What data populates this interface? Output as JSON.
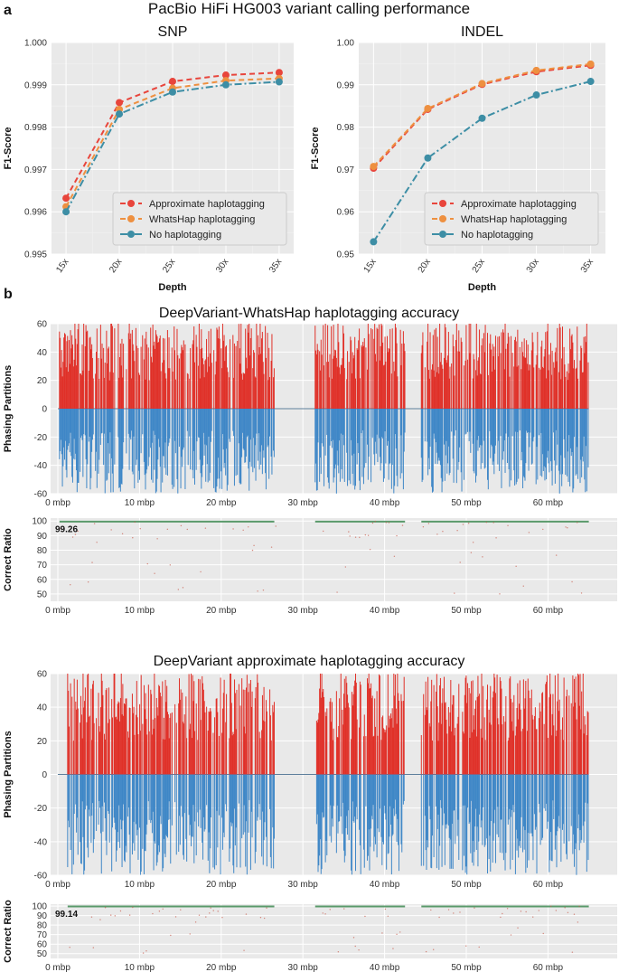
{
  "figure": {
    "label_a": "a",
    "label_b": "b",
    "title_a": "PacBio HiFi HG003 variant calling performance"
  },
  "colors": {
    "approx": "#e8453c",
    "whatshap": "#ee9040",
    "none": "#3d8ea5",
    "positive": "#e03129",
    "negative": "#3f87c7",
    "ratio_line": "#5a9a6b",
    "ratio_dot": "#c75a4a"
  },
  "chart_data": [
    {
      "id": "snp",
      "type": "line",
      "title": "SNP",
      "xlabel": "Depth",
      "ylabel": "F1-Score",
      "categories": [
        "15x",
        "20x",
        "25x",
        "30x",
        "35x"
      ],
      "ylim": [
        0.995,
        1.0
      ],
      "yticks": [
        "1.000",
        "0.999",
        "0.998",
        "0.997",
        "0.996",
        "0.995"
      ],
      "yticks_values": [
        1.0,
        0.999,
        0.998,
        0.997,
        0.996,
        0.995
      ],
      "legend": "bottom-right",
      "series": [
        {
          "name": "Approximate haplotagging",
          "color_key": "approx",
          "dash": "6,4",
          "values": [
            0.99632,
            0.99858,
            0.99908,
            0.99923,
            0.99929
          ]
        },
        {
          "name": "WhatsHap haplotagging",
          "color_key": "whatshap",
          "dash": "6,4",
          "values": [
            0.99612,
            0.99842,
            0.99892,
            0.9991,
            0.99915
          ]
        },
        {
          "name": "No haplotagging",
          "color_key": "none",
          "dash": "8,3,2,3",
          "values": [
            0.996,
            0.99831,
            0.99883,
            0.999,
            0.99907
          ]
        }
      ]
    },
    {
      "id": "indel",
      "type": "line",
      "title": "INDEL",
      "xlabel": "Depth",
      "ylabel": "F1-Score",
      "categories": [
        "15x",
        "20x",
        "25x",
        "30x",
        "35x"
      ],
      "ylim": [
        0.95,
        1.0
      ],
      "yticks": [
        "1.00",
        "0.99",
        "0.98",
        "0.97",
        "0.96",
        "0.95"
      ],
      "yticks_values": [
        1.0,
        0.99,
        0.98,
        0.97,
        0.96,
        0.95
      ],
      "legend": "bottom-right",
      "series": [
        {
          "name": "Approximate haplotagging",
          "color_key": "approx",
          "dash": "6,4",
          "values": [
            0.9703,
            0.9842,
            0.9901,
            0.9931,
            0.9946
          ]
        },
        {
          "name": "WhatsHap haplotagging",
          "color_key": "whatshap",
          "dash": "6,4",
          "values": [
            0.9707,
            0.9844,
            0.9903,
            0.9934,
            0.9949
          ]
        },
        {
          "name": "No haplotagging",
          "color_key": "none",
          "dash": "8,3,2,3",
          "values": [
            0.9529,
            0.9727,
            0.9821,
            0.9876,
            0.9908
          ]
        }
      ]
    },
    {
      "id": "whatshap_partitions",
      "type": "bar",
      "title": "DeepVariant-WhatsHap haplotagging accuracy",
      "xlabel": "",
      "ylabel": "Phasing Partitions",
      "xlim": [
        0,
        65
      ],
      "ylim": [
        -60,
        60
      ],
      "xticks": [
        "0 mbp",
        "10 mbp",
        "20 mbp",
        "30 mbp",
        "40 mbp",
        "50 mbp",
        "60 mbp"
      ],
      "xticks_values": [
        0,
        10,
        20,
        30,
        40,
        50,
        60
      ],
      "yticks": [
        "60",
        "40",
        "20",
        "0",
        "-20",
        "-40",
        "-60"
      ],
      "yticks_values": [
        60,
        40,
        20,
        0,
        -20,
        -40,
        -60
      ],
      "segments": [
        [
          0.2,
          26.5
        ],
        [
          31.5,
          42.5
        ],
        [
          44.5,
          65
        ]
      ],
      "seed": 17
    },
    {
      "id": "whatshap_ratio",
      "type": "scatter",
      "xlabel": "",
      "ylabel": "Correct Ratio",
      "annotation": "99.26",
      "mean": 99.26,
      "xlim": [
        0,
        65
      ],
      "ylim": [
        45,
        102
      ],
      "xticks": [
        "0 mbp",
        "10 mbp",
        "20 mbp",
        "30 mbp",
        "40 mbp",
        "50 mbp",
        "60 mbp"
      ],
      "xticks_values": [
        0,
        10,
        20,
        30,
        40,
        50,
        60
      ],
      "yticks": [
        "100",
        "90",
        "80",
        "70",
        "60",
        "50"
      ],
      "yticks_values": [
        100,
        90,
        80,
        70,
        60,
        50
      ],
      "segments": [
        [
          0.2,
          26.5
        ],
        [
          31.5,
          42.5
        ],
        [
          44.5,
          65
        ]
      ],
      "seed": 23
    },
    {
      "id": "approx_partitions",
      "type": "bar",
      "title": "DeepVariant approximate haplotagging accuracy",
      "xlabel": "",
      "ylabel": "Phasing Partitions",
      "xlim": [
        0,
        65
      ],
      "ylim": [
        -60,
        60
      ],
      "xticks": [
        "0 mbp",
        "10 mbp",
        "20 mbp",
        "30 mbp",
        "40 mbp",
        "50 mbp",
        "60 mbp"
      ],
      "xticks_values": [
        0,
        10,
        20,
        30,
        40,
        50,
        60
      ],
      "yticks": [
        "60",
        "40",
        "20",
        "0",
        "-20",
        "-40",
        "-60"
      ],
      "yticks_values": [
        60,
        40,
        20,
        0,
        -20,
        -40,
        -60
      ],
      "segments": [
        [
          1.2,
          26.5
        ],
        [
          31.5,
          42.5
        ],
        [
          44.5,
          65
        ]
      ],
      "seed": 41
    },
    {
      "id": "approx_ratio",
      "type": "scatter",
      "xlabel": "",
      "ylabel": "Correct Ratio",
      "annotation": "99.14",
      "mean": 99.14,
      "xlim": [
        0,
        65
      ],
      "ylim": [
        45,
        102
      ],
      "xticks": [
        "0 mbp",
        "10 mbp",
        "20 mbp",
        "30 mbp",
        "40 mbp",
        "50 mbp",
        "60 mbp"
      ],
      "xticks_values": [
        0,
        10,
        20,
        30,
        40,
        50,
        60
      ],
      "yticks": [
        "100",
        "90",
        "80",
        "70",
        "60",
        "50"
      ],
      "yticks_values": [
        100,
        90,
        80,
        70,
        60,
        50
      ],
      "segments": [
        [
          1.2,
          26.5
        ],
        [
          31.5,
          42.5
        ],
        [
          44.5,
          65
        ]
      ],
      "seed": 59
    }
  ]
}
